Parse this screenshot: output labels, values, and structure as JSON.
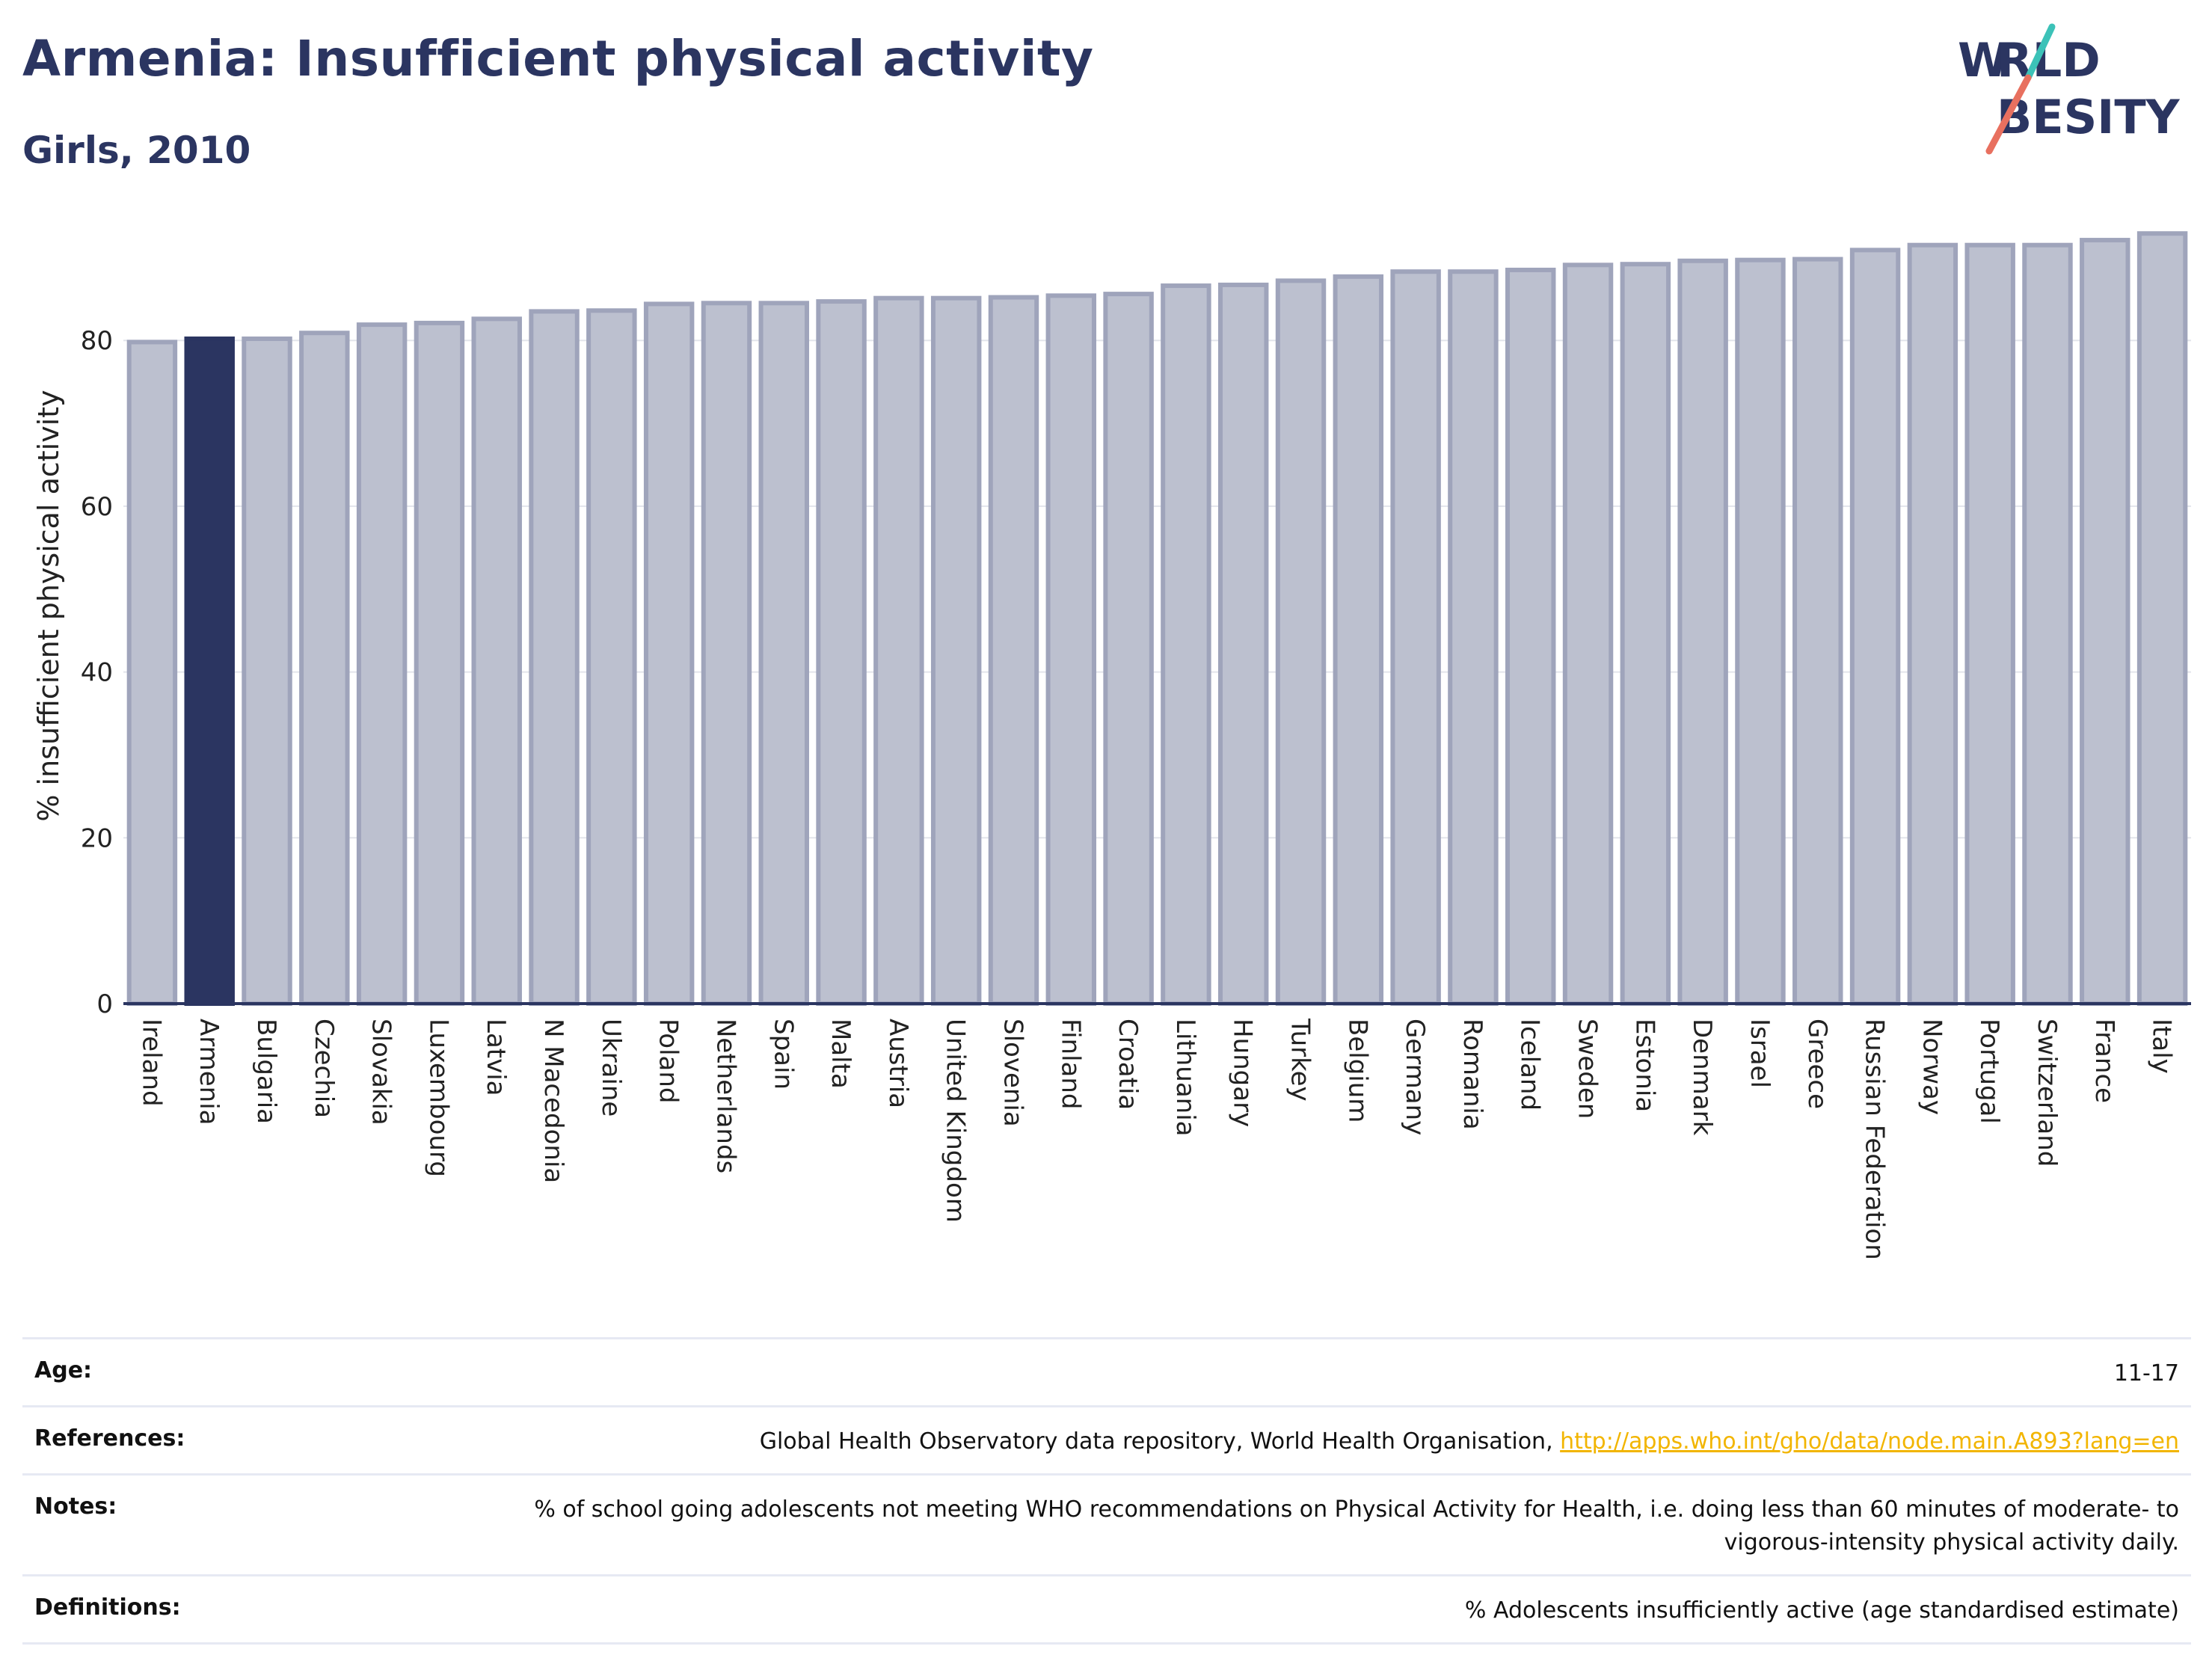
{
  "header": {
    "title": "Armenia: Insufficient physical activity",
    "subtitle": "Girls, 2010"
  },
  "logo": {
    "line1": "WORLD",
    "line2": "OBESITY"
  },
  "colors": {
    "highlight": "#2b3561",
    "bar": "#bcc0cf",
    "bar_stroke": "#9fa4bb",
    "teal": "#3cc2b8",
    "coral": "#e8705f",
    "link": "#f2b500"
  },
  "chart_data": {
    "type": "bar",
    "title": "Armenia: Insufficient physical activity",
    "subtitle": "Girls, 2010",
    "ylabel": "% insufficient physical activity",
    "xlabel": "",
    "ylim": [
      0,
      94
    ],
    "yticks": [
      0,
      20,
      40,
      60,
      80
    ],
    "grid": true,
    "highlight": "Armenia",
    "categories": [
      "Ireland",
      "Armenia",
      "Bulgaria",
      "Czechia",
      "Slovakia",
      "Luxembourg",
      "Latvia",
      "N Macedonia",
      "Ukraine",
      "Poland",
      "Netherlands",
      "Spain",
      "Malta",
      "Austria",
      "United Kingdom",
      "Slovenia",
      "Finland",
      "Croatia",
      "Lithuania",
      "Hungary",
      "Turkey",
      "Belgium",
      "Germany",
      "Romania",
      "Iceland",
      "Sweden",
      "Estonia",
      "Denmark",
      "Israel",
      "Greece",
      "Russian Federation",
      "Norway",
      "Portugal",
      "Switzerland",
      "France",
      "Italy"
    ],
    "values": [
      79.8,
      80.2,
      80.2,
      80.9,
      81.9,
      82.1,
      82.6,
      83.5,
      83.6,
      84.4,
      84.5,
      84.5,
      84.7,
      85.1,
      85.1,
      85.2,
      85.4,
      85.6,
      86.6,
      86.7,
      87.2,
      87.7,
      88.3,
      88.3,
      88.5,
      89.1,
      89.2,
      89.6,
      89.7,
      89.8,
      90.9,
      91.5,
      91.5,
      91.5,
      92.1,
      92.9
    ]
  },
  "meta": [
    {
      "key": "Age:",
      "value": "11-17"
    },
    {
      "key": "References:",
      "value": "Global Health Observatory data repository, World Health Organisation, ",
      "link": "http://apps.who.int/gho/data/node.main.A893?lang=en"
    },
    {
      "key": "Notes:",
      "value": "% of school going adolescents not meeting WHO recommendations on Physical Activity for Health, i.e. doing less than 60 minutes of moderate- to vigorous-intensity physical activity daily."
    },
    {
      "key": "Definitions:",
      "value": "% Adolescents insufficiently active (age standardised estimate)"
    }
  ]
}
